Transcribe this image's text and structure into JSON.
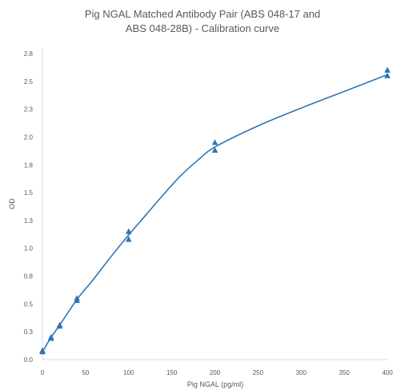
{
  "chart_data": {
    "type": "scatter",
    "title_lines": [
      "Pig NGAL Matched Antibody Pair (ABS 048-17 and",
      "ABS 048-28B) - Calibration curve"
    ],
    "xlabel": "Pig NGAL (pg/ml)",
    "ylabel": "OD",
    "xlim": [
      0,
      400
    ],
    "ylim": [
      0,
      2.8
    ],
    "xticks": [
      0,
      50,
      100,
      150,
      200,
      250,
      300,
      350,
      400
    ],
    "yticks": [
      "0.0",
      "0.3",
      "0.5",
      "0.8",
      "1.0",
      "1.3",
      "1.5",
      "1.8",
      "2.0",
      "2.3",
      "2.5",
      "2.8"
    ],
    "ytick_values": [
      0,
      0.25,
      0.5,
      0.75,
      1.0,
      1.25,
      1.5,
      1.75,
      2.0,
      2.25,
      2.5,
      2.75
    ],
    "grid": false,
    "series": [
      {
        "points": [
          {
            "x": 0,
            "y": 0.07
          },
          {
            "x": 0,
            "y": 0.08
          },
          {
            "x": 10,
            "y": 0.19
          },
          {
            "x": 10,
            "y": 0.2
          },
          {
            "x": 20,
            "y": 0.3
          },
          {
            "x": 20,
            "y": 0.31
          },
          {
            "x": 40,
            "y": 0.53
          },
          {
            "x": 40,
            "y": 0.55
          },
          {
            "x": 100,
            "y": 1.08
          },
          {
            "x": 100,
            "y": 1.15
          },
          {
            "x": 200,
            "y": 1.88
          },
          {
            "x": 200,
            "y": 1.95
          },
          {
            "x": 400,
            "y": 2.55
          },
          {
            "x": 400,
            "y": 2.6
          }
        ],
        "fit_curve": [
          {
            "x": 0,
            "y": 0.07
          },
          {
            "x": 10,
            "y": 0.2
          },
          {
            "x": 20,
            "y": 0.31
          },
          {
            "x": 40,
            "y": 0.54
          },
          {
            "x": 60,
            "y": 0.73
          },
          {
            "x": 80,
            "y": 0.93
          },
          {
            "x": 100,
            "y": 1.12
          },
          {
            "x": 120,
            "y": 1.3
          },
          {
            "x": 140,
            "y": 1.48
          },
          {
            "x": 160,
            "y": 1.65
          },
          {
            "x": 180,
            "y": 1.79
          },
          {
            "x": 200,
            "y": 1.91
          },
          {
            "x": 250,
            "y": 2.1
          },
          {
            "x": 300,
            "y": 2.26
          },
          {
            "x": 350,
            "y": 2.41
          },
          {
            "x": 400,
            "y": 2.56
          }
        ]
      }
    ],
    "colors": {
      "series": "#2E75B6",
      "axis": "#D9D9D9",
      "text": "#595959"
    }
  }
}
